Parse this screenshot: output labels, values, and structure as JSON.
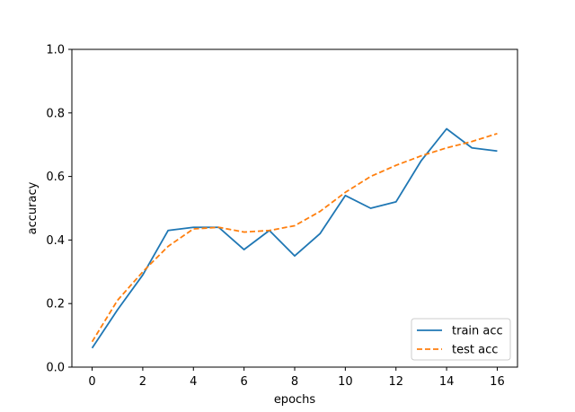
{
  "chart_data": {
    "type": "line",
    "x": [
      0,
      1,
      2,
      3,
      4,
      5,
      6,
      7,
      8,
      9,
      10,
      11,
      12,
      13,
      14,
      15,
      16
    ],
    "series": [
      {
        "name": "train acc",
        "style": "solid",
        "color": "#1f77b4",
        "values": [
          0.06,
          0.18,
          0.29,
          0.43,
          0.44,
          0.44,
          0.37,
          0.43,
          0.35,
          0.42,
          0.54,
          0.5,
          0.52,
          0.65,
          0.75,
          0.69,
          0.68
        ]
      },
      {
        "name": "test acc",
        "style": "dashed",
        "color": "#ff7f0e",
        "values": [
          0.08,
          0.21,
          0.3,
          0.38,
          0.435,
          0.44,
          0.425,
          0.43,
          0.445,
          0.49,
          0.55,
          0.6,
          0.635,
          0.665,
          0.69,
          0.71,
          0.735
        ]
      }
    ],
    "xlabel": "epochs",
    "ylabel": "accuracy",
    "xlim": [
      -0.8,
      16.8
    ],
    "ylim": [
      0,
      1.0
    ],
    "xticks": [
      "0",
      "2",
      "4",
      "6",
      "8",
      "10",
      "12",
      "14",
      "16"
    ],
    "yticks": [
      "0.0",
      "0.2",
      "0.4",
      "0.6",
      "0.8",
      "1.0"
    ],
    "grid": false,
    "legend_position": "lower-right"
  }
}
